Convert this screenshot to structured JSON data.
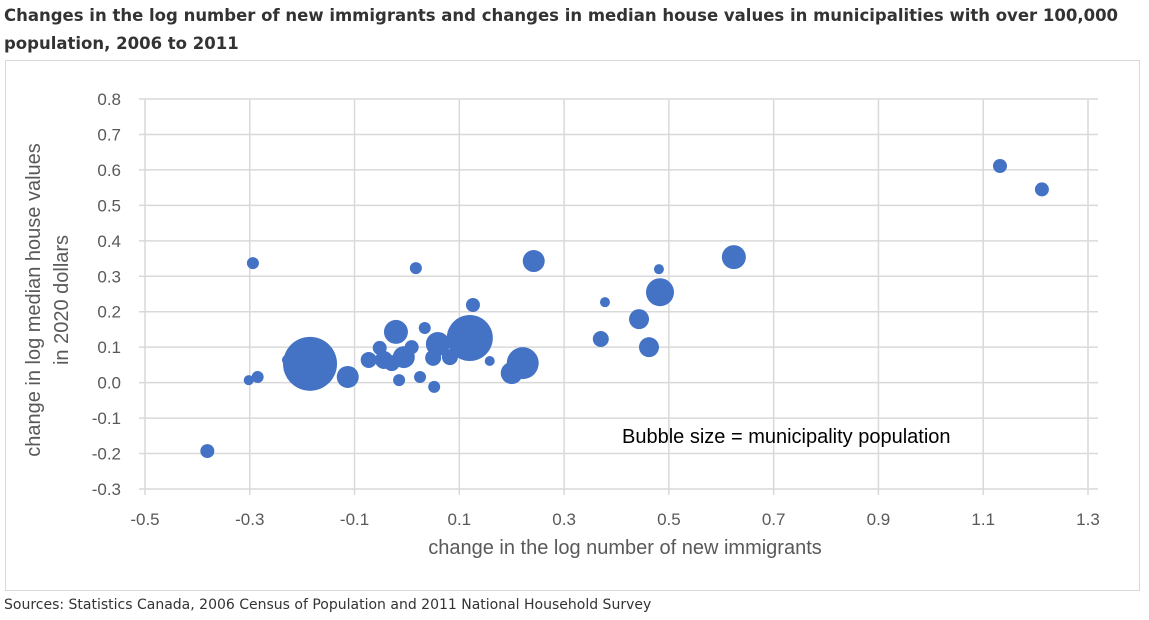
{
  "title": "Changes in the log number of new immigrants and changes in median house values in municipalities with over 100,000 population, 2006 to 2011",
  "source": "Sources: Statistics Canada, 2006 Census of Population and 2011 National Household Survey",
  "colors": {
    "bubble": "#4472c4",
    "grid": "#d9d9d9",
    "axis_text": "#595959"
  },
  "chart_data": {
    "type": "scatter",
    "subtype": "bubble",
    "title": "Changes in the log number of new immigrants and changes in median house values in municipalities with over 100,000 population, 2006 to 2011",
    "xlabel": "change in the log number of new immigrants",
    "ylabel_line1": "change in log median house values",
    "ylabel_line2": "in 2020 dollars",
    "xlim": [
      -0.5,
      1.3
    ],
    "ylim": [
      -0.3,
      0.8
    ],
    "x_ticks": [
      "-0.5",
      "-0.3",
      "-0.1",
      "0.1",
      "0.3",
      "0.5",
      "0.7",
      "0.9",
      "1.1",
      "1.3"
    ],
    "y_ticks": [
      "0.8",
      "0.7",
      "0.6",
      "0.5",
      "0.4",
      "0.3",
      "0.2",
      "0.1",
      "0.0",
      "-0.1",
      "-0.2",
      "-0.3"
    ],
    "grid": true,
    "annotation": "Bubble size = municipality population",
    "size_label": "municipality population (relative)",
    "points": [
      {
        "x": -0.381,
        "y": -0.193,
        "size": 7
      },
      {
        "x": -0.302,
        "y": 0.007,
        "size": 5
      },
      {
        "x": -0.285,
        "y": 0.016,
        "size": 6
      },
      {
        "x": -0.294,
        "y": 0.337,
        "size": 6
      },
      {
        "x": -0.229,
        "y": 0.064,
        "size": 5
      },
      {
        "x": -0.185,
        "y": 0.053,
        "size": 27
      },
      {
        "x": -0.113,
        "y": 0.016,
        "size": 11
      },
      {
        "x": -0.073,
        "y": 0.064,
        "size": 8
      },
      {
        "x": -0.052,
        "y": 0.098,
        "size": 7
      },
      {
        "x": -0.044,
        "y": 0.064,
        "size": 9
      },
      {
        "x": -0.021,
        "y": 0.143,
        "size": 12
      },
      {
        "x": -0.029,
        "y": 0.055,
        "size": 8
      },
      {
        "x": -0.006,
        "y": 0.072,
        "size": 11
      },
      {
        "x": -0.015,
        "y": 0.007,
        "size": 6
      },
      {
        "x": 0.009,
        "y": 0.1,
        "size": 7
      },
      {
        "x": 0.025,
        "y": 0.016,
        "size": 6
      },
      {
        "x": 0.034,
        "y": 0.154,
        "size": 6
      },
      {
        "x": 0.017,
        "y": 0.323,
        "size": 6
      },
      {
        "x": 0.052,
        "y": -0.012,
        "size": 6
      },
      {
        "x": 0.05,
        "y": 0.07,
        "size": 8
      },
      {
        "x": 0.059,
        "y": 0.109,
        "size": 12
      },
      {
        "x": 0.082,
        "y": 0.072,
        "size": 8
      },
      {
        "x": 0.12,
        "y": 0.126,
        "size": 23
      },
      {
        "x": 0.126,
        "y": 0.219,
        "size": 7
      },
      {
        "x": 0.158,
        "y": 0.061,
        "size": 5
      },
      {
        "x": 0.2,
        "y": 0.027,
        "size": 11
      },
      {
        "x": 0.221,
        "y": 0.055,
        "size": 16
      },
      {
        "x": 0.242,
        "y": 0.343,
        "size": 11
      },
      {
        "x": 0.37,
        "y": 0.123,
        "size": 8
      },
      {
        "x": 0.378,
        "y": 0.227,
        "size": 5
      },
      {
        "x": 0.443,
        "y": 0.179,
        "size": 10
      },
      {
        "x": 0.462,
        "y": 0.1,
        "size": 10
      },
      {
        "x": 0.481,
        "y": 0.32,
        "size": 5
      },
      {
        "x": 0.483,
        "y": 0.255,
        "size": 14
      },
      {
        "x": 0.624,
        "y": 0.354,
        "size": 12
      },
      {
        "x": 1.132,
        "y": 0.611,
        "size": 7
      },
      {
        "x": 1.212,
        "y": 0.545,
        "size": 7
      }
    ]
  }
}
